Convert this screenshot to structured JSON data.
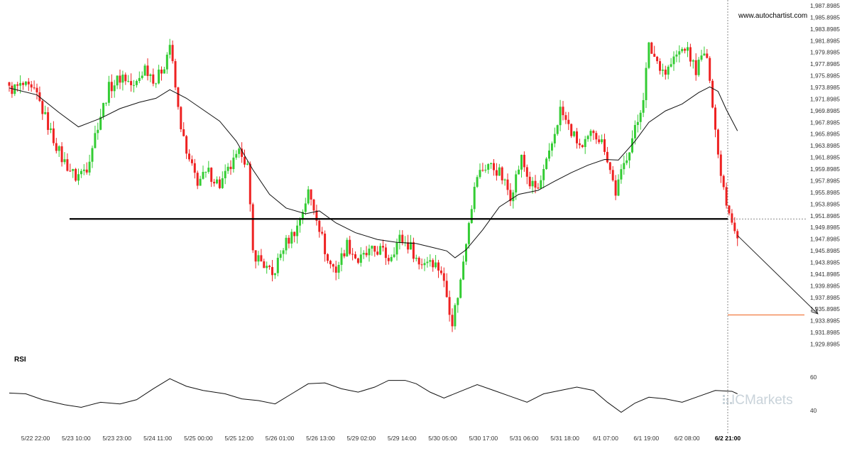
{
  "brand": {
    "website": "www.autochartist.com",
    "watermark": "ICMarkets"
  },
  "colors": {
    "up": "#33cc33",
    "down": "#ee2222",
    "ma": "#111111",
    "level": "#000000",
    "target": "#f07030",
    "rsi": "#111111",
    "axis_text": "#333333"
  },
  "chart_data": [
    {
      "type": "candlestick",
      "title": "",
      "ylim": [
        1929.0,
        1988.2
      ],
      "y_ticks": [
        "1,987.8985",
        "1,985.8985",
        "1,983.8985",
        "1,981.8985",
        "1,979.8985",
        "1,977.8985",
        "1,975.8985",
        "1,973.8985",
        "1,971.8985",
        "1,969.8985",
        "1,967.8985",
        "1,965.8985",
        "1,963.8985",
        "1,961.8985",
        "1,959.8985",
        "1,957.8985",
        "1,955.8985",
        "1,953.8985",
        "1,951.8985",
        "1,949.8985",
        "1,947.8985",
        "1,945.8985",
        "1,943.8985",
        "1,941.8985",
        "1,939.8985",
        "1,937.8985",
        "1,935.8985",
        "1,933.8985",
        "1,931.8985",
        "1,929.8985"
      ],
      "x_labels": [
        "5/22 22:00",
        "5/23 10:00",
        "5/23 23:00",
        "5/24 11:00",
        "5/25 00:00",
        "5/25 12:00",
        "5/26 01:00",
        "5/26 13:00",
        "5/29 02:00",
        "5/29 14:00",
        "5/30 05:00",
        "5/30 17:00",
        "5/31 06:00",
        "5/31 18:00",
        "6/1 07:00",
        "6/1 19:00",
        "6/2 08:00",
        "6/2 21:00"
      ],
      "current_x_label": "6/2 21:00",
      "price_path": [
        [
          0,
          1973.5
        ],
        [
          5,
          1974.2
        ],
        [
          10,
          1972.5
        ],
        [
          15,
          1966.0
        ],
        [
          19,
          1961.5
        ],
        [
          24,
          1958.2
        ],
        [
          28,
          1960.0
        ],
        [
          32,
          1967.5
        ],
        [
          36,
          1973.8
        ],
        [
          41,
          1976.0
        ],
        [
          45,
          1973.8
        ],
        [
          49,
          1977.5
        ],
        [
          53,
          1975.0
        ],
        [
          56,
          1978.0
        ],
        [
          58,
          1981.5
        ],
        [
          61,
          1970.0
        ],
        [
          64,
          1962.0
        ],
        [
          68,
          1957.5
        ],
        [
          72,
          1959.0
        ],
        [
          76,
          1956.8
        ],
        [
          80,
          1960.0
        ],
        [
          84,
          1962.8
        ],
        [
          86,
          1960.0
        ],
        [
          88,
          1945.0
        ],
        [
          91,
          1943.5
        ],
        [
          95,
          1940.8
        ],
        [
          99,
          1946.0
        ],
        [
          104,
          1949.5
        ],
        [
          108,
          1955.5
        ],
        [
          111,
          1951.5
        ],
        [
          115,
          1943.5
        ],
        [
          118,
          1942.0
        ],
        [
          122,
          1946.5
        ],
        [
          126,
          1943.5
        ],
        [
          130,
          1945.0
        ],
        [
          134,
          1945.5
        ],
        [
          137,
          1944.0
        ],
        [
          141,
          1947.5
        ],
        [
          145,
          1946.0
        ],
        [
          148,
          1943.0
        ],
        [
          152,
          1944.0
        ],
        [
          156,
          1941.8
        ],
        [
          160,
          1933.0
        ],
        [
          163,
          1940.0
        ],
        [
          166,
          1951.0
        ],
        [
          169,
          1958.5
        ],
        [
          173,
          1960.5
        ],
        [
          177,
          1959.0
        ],
        [
          181,
          1955.0
        ],
        [
          185,
          1961.5
        ],
        [
          188,
          1957.0
        ],
        [
          191,
          1956.0
        ],
        [
          195,
          1962.0
        ],
        [
          199,
          1970.0
        ],
        [
          203,
          1966.0
        ],
        [
          207,
          1963.0
        ],
        [
          211,
          1966.5
        ],
        [
          215,
          1963.5
        ],
        [
          219,
          1955.5
        ],
        [
          223,
          1962.0
        ],
        [
          227,
          1968.0
        ],
        [
          229,
          1972.5
        ],
        [
          231,
          1981.0
        ],
        [
          234,
          1978.5
        ],
        [
          237,
          1976.5
        ],
        [
          241,
          1979.5
        ],
        [
          244,
          1981.0
        ],
        [
          248,
          1977.0
        ],
        [
          251,
          1980.0
        ],
        [
          253,
          1976.0
        ],
        [
          256,
          1962.0
        ],
        [
          259,
          1954.0
        ],
        [
          261,
          1951.0
        ],
        [
          263,
          1947.5
        ]
      ],
      "ma_path": [
        [
          0,
          1973.8
        ],
        [
          10,
          1972.6
        ],
        [
          18,
          1969.5
        ],
        [
          25,
          1967.0
        ],
        [
          33,
          1968.5
        ],
        [
          40,
          1970.2
        ],
        [
          47,
          1971.3
        ],
        [
          53,
          1972.0
        ],
        [
          58,
          1973.5
        ],
        [
          64,
          1972.0
        ],
        [
          70,
          1970.0
        ],
        [
          76,
          1968.0
        ],
        [
          82,
          1964.5
        ],
        [
          88,
          1959.5
        ],
        [
          94,
          1955.2
        ],
        [
          100,
          1952.8
        ],
        [
          107,
          1951.8
        ],
        [
          112,
          1952.3
        ],
        [
          118,
          1950.2
        ],
        [
          125,
          1948.5
        ],
        [
          133,
          1947.3
        ],
        [
          140,
          1946.8
        ],
        [
          147,
          1946.6
        ],
        [
          153,
          1945.9
        ],
        [
          158,
          1945.3
        ],
        [
          161,
          1944.1
        ],
        [
          165,
          1945.5
        ],
        [
          171,
          1949.0
        ],
        [
          177,
          1953.0
        ],
        [
          184,
          1955.2
        ],
        [
          191,
          1955.9
        ],
        [
          197,
          1957.5
        ],
        [
          203,
          1959.0
        ],
        [
          209,
          1960.3
        ],
        [
          215,
          1961.3
        ],
        [
          220,
          1961.2
        ],
        [
          226,
          1964.5
        ],
        [
          231,
          1967.8
        ],
        [
          237,
          1969.8
        ],
        [
          243,
          1971.0
        ],
        [
          249,
          1973.0
        ],
        [
          253,
          1974.0
        ],
        [
          256,
          1973.2
        ],
        [
          259,
          1970.0
        ],
        [
          263,
          1966.3
        ]
      ],
      "support_level": 1950.9,
      "target_level": 1934.1,
      "arrow_from": [
        263,
        1948.0
      ],
      "arrow_to": [
        292,
        1934.3
      ]
    },
    {
      "type": "line",
      "title": "RSI",
      "ylim": [
        35,
        65
      ],
      "y_ticks": [
        60,
        40
      ],
      "series": [
        {
          "points": [
            [
              0,
              50.5
            ],
            [
              6,
              50.0
            ],
            [
              12,
              46.5
            ],
            [
              20,
              43.5
            ],
            [
              26,
              42.0
            ],
            [
              33,
              45.0
            ],
            [
              40,
              44.0
            ],
            [
              46,
              46.5
            ],
            [
              52,
              53.0
            ],
            [
              58,
              59.0
            ],
            [
              64,
              54.5
            ],
            [
              70,
              52.0
            ],
            [
              78,
              50.0
            ],
            [
              84,
              47.0
            ],
            [
              90,
              46.0
            ],
            [
              96,
              44.0
            ],
            [
              102,
              50.0
            ],
            [
              108,
              56.0
            ],
            [
              114,
              56.5
            ],
            [
              120,
              53.0
            ],
            [
              126,
              51.0
            ],
            [
              132,
              54.0
            ],
            [
              137,
              58.0
            ],
            [
              143,
              58.0
            ],
            [
              147,
              56.0
            ],
            [
              152,
              51.0
            ],
            [
              157,
              47.5
            ],
            [
              163,
              51.5
            ],
            [
              169,
              55.5
            ],
            [
              175,
              52.0
            ],
            [
              181,
              48.5
            ],
            [
              187,
              45.0
            ],
            [
              193,
              50.0
            ],
            [
              199,
              52.0
            ],
            [
              205,
              54.0
            ],
            [
              211,
              52.0
            ],
            [
              216,
              45.0
            ],
            [
              221,
              39.0
            ],
            [
              226,
              44.5
            ],
            [
              231,
              48.0
            ],
            [
              237,
              47.0
            ],
            [
              243,
              45.0
            ],
            [
              249,
              48.5
            ],
            [
              255,
              52.0
            ],
            [
              261,
              51.5
            ],
            [
              263,
              50.0
            ]
          ]
        }
      ]
    }
  ]
}
